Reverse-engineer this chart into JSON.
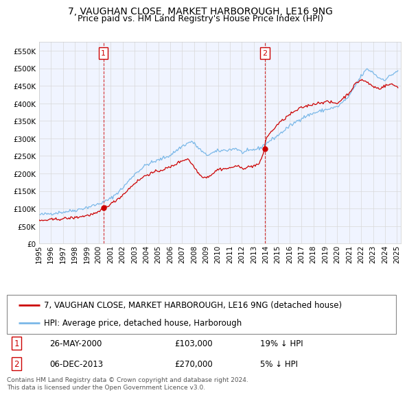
{
  "title": "7, VAUGHAN CLOSE, MARKET HARBOROUGH, LE16 9NG",
  "subtitle": "Price paid vs. HM Land Registry's House Price Index (HPI)",
  "ylim": [
    0,
    575000
  ],
  "yticks": [
    0,
    50000,
    100000,
    150000,
    200000,
    250000,
    300000,
    350000,
    400000,
    450000,
    500000,
    550000
  ],
  "xlim_start": 1995.0,
  "xlim_end": 2025.3,
  "sale1_date": 2000.39,
  "sale1_price": 103000,
  "sale1_label": "1",
  "sale2_date": 2013.92,
  "sale2_price": 270000,
  "sale2_label": "2",
  "hpi_color": "#7ab8e8",
  "price_color": "#cc0000",
  "grid_color": "#d8d8d8",
  "background_color": "#ffffff",
  "legend_line1": "7, VAUGHAN CLOSE, MARKET HARBOROUGH, LE16 9NG (detached house)",
  "legend_line2": "HPI: Average price, detached house, Harborough",
  "table_row1_num": "1",
  "table_row1_date": "26-MAY-2000",
  "table_row1_price": "£103,000",
  "table_row1_hpi": "19% ↓ HPI",
  "table_row2_num": "2",
  "table_row2_date": "06-DEC-2013",
  "table_row2_price": "£270,000",
  "table_row2_hpi": "5% ↓ HPI",
  "footer": "Contains HM Land Registry data © Crown copyright and database right 2024.\nThis data is licensed under the Open Government Licence v3.0.",
  "title_fontsize": 10,
  "subtitle_fontsize": 9,
  "tick_fontsize": 7.5,
  "legend_fontsize": 8.5
}
